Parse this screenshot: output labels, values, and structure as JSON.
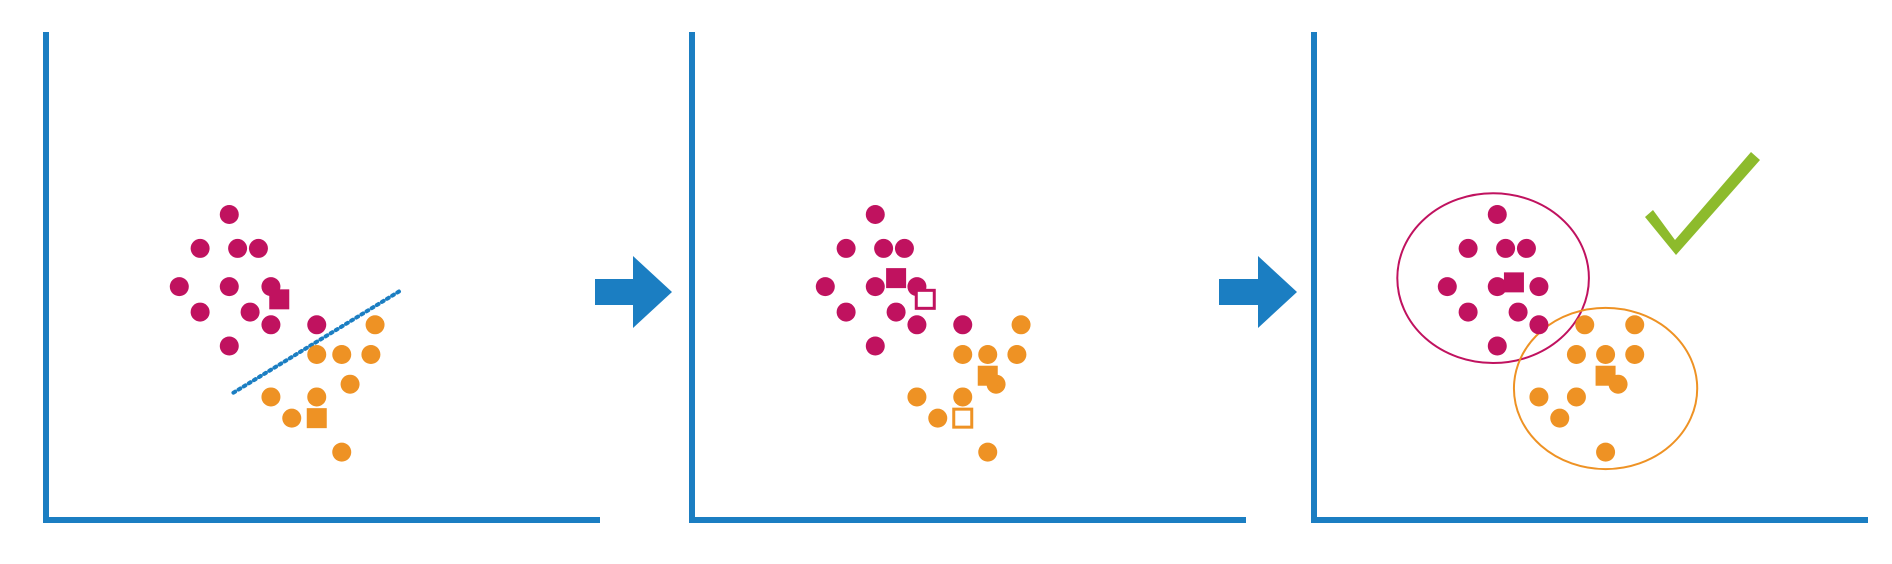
{
  "colors": {
    "axis": "#1b7ec2",
    "arrow": "#1b7ec2",
    "cluster_a": "#c0125f",
    "cluster_b": "#ee9224",
    "divider": "#1b7ec2",
    "check": "#8dbb2c"
  },
  "icons": [
    "arrow-right-icon",
    "arrow-right-icon",
    "checkmark-icon"
  ],
  "panels": [
    {
      "name": "initial-split",
      "cluster_a": [
        [
          4.4,
          7.2
        ],
        [
          3.7,
          6.4
        ],
        [
          4.6,
          6.4
        ],
        [
          5.1,
          6.4
        ],
        [
          3.2,
          5.5
        ],
        [
          4.4,
          5.5
        ],
        [
          5.4,
          5.5
        ],
        [
          3.7,
          4.9
        ],
        [
          4.9,
          4.9
        ],
        [
          5.4,
          4.6
        ],
        [
          4.4,
          4.1
        ],
        [
          6.5,
          4.6
        ]
      ],
      "cluster_b": [
        [
          7.9,
          4.6
        ],
        [
          6.5,
          3.9
        ],
        [
          7.1,
          3.9
        ],
        [
          7.8,
          3.9
        ],
        [
          7.3,
          3.2
        ],
        [
          5.4,
          2.9
        ],
        [
          6.5,
          2.9
        ],
        [
          5.9,
          2.4
        ],
        [
          7.1,
          1.6
        ]
      ],
      "centroid_a": [
        5.6,
        5.2
      ],
      "centroid_b": [
        6.5,
        2.4
      ],
      "divider_line": [
        [
          4.5,
          3.0
        ],
        [
          8.5,
          5.4
        ]
      ]
    },
    {
      "name": "centroids-moved",
      "cluster_a": [
        [
          4.4,
          7.2
        ],
        [
          3.7,
          6.4
        ],
        [
          4.6,
          6.4
        ],
        [
          5.1,
          6.4
        ],
        [
          3.2,
          5.5
        ],
        [
          4.4,
          5.5
        ],
        [
          5.4,
          5.5
        ],
        [
          3.7,
          4.9
        ],
        [
          4.9,
          4.9
        ],
        [
          5.4,
          4.6
        ],
        [
          4.4,
          4.1
        ],
        [
          6.5,
          4.6
        ]
      ],
      "cluster_b": [
        [
          7.9,
          4.6
        ],
        [
          6.5,
          3.9
        ],
        [
          7.1,
          3.9
        ],
        [
          7.8,
          3.9
        ],
        [
          7.3,
          3.2
        ],
        [
          5.4,
          2.9
        ],
        [
          6.5,
          2.9
        ],
        [
          5.9,
          2.4
        ],
        [
          7.1,
          1.6
        ]
      ],
      "centroid_a": [
        4.9,
        5.7
      ],
      "centroid_b": [
        7.1,
        3.4
      ],
      "old_centroid_a": [
        5.6,
        5.2
      ],
      "old_centroid_b": [
        6.5,
        2.4
      ]
    },
    {
      "name": "final-clusters",
      "cluster_a": [
        [
          4.4,
          7.2
        ],
        [
          3.7,
          6.4
        ],
        [
          4.6,
          6.4
        ],
        [
          5.1,
          6.4
        ],
        [
          3.2,
          5.5
        ],
        [
          4.4,
          5.5
        ],
        [
          5.4,
          5.5
        ],
        [
          3.7,
          4.9
        ],
        [
          4.9,
          4.9
        ],
        [
          5.4,
          4.6
        ],
        [
          4.4,
          4.1
        ]
      ],
      "cluster_b": [
        [
          6.5,
          4.6
        ],
        [
          7.7,
          4.6
        ],
        [
          6.3,
          3.9
        ],
        [
          7.0,
          3.9
        ],
        [
          7.7,
          3.9
        ],
        [
          7.3,
          3.2
        ],
        [
          5.4,
          2.9
        ],
        [
          6.3,
          2.9
        ],
        [
          5.9,
          2.4
        ],
        [
          7.0,
          1.6
        ]
      ],
      "centroid_a": [
        4.8,
        5.6
      ],
      "centroid_b": [
        7.0,
        3.4
      ],
      "boundary_a": {
        "center": [
          4.3,
          5.7
        ],
        "radius": [
          2.3,
          2.0
        ]
      },
      "boundary_b": {
        "center": [
          7.0,
          3.1
        ],
        "radius": [
          2.2,
          1.9
        ]
      }
    }
  ]
}
